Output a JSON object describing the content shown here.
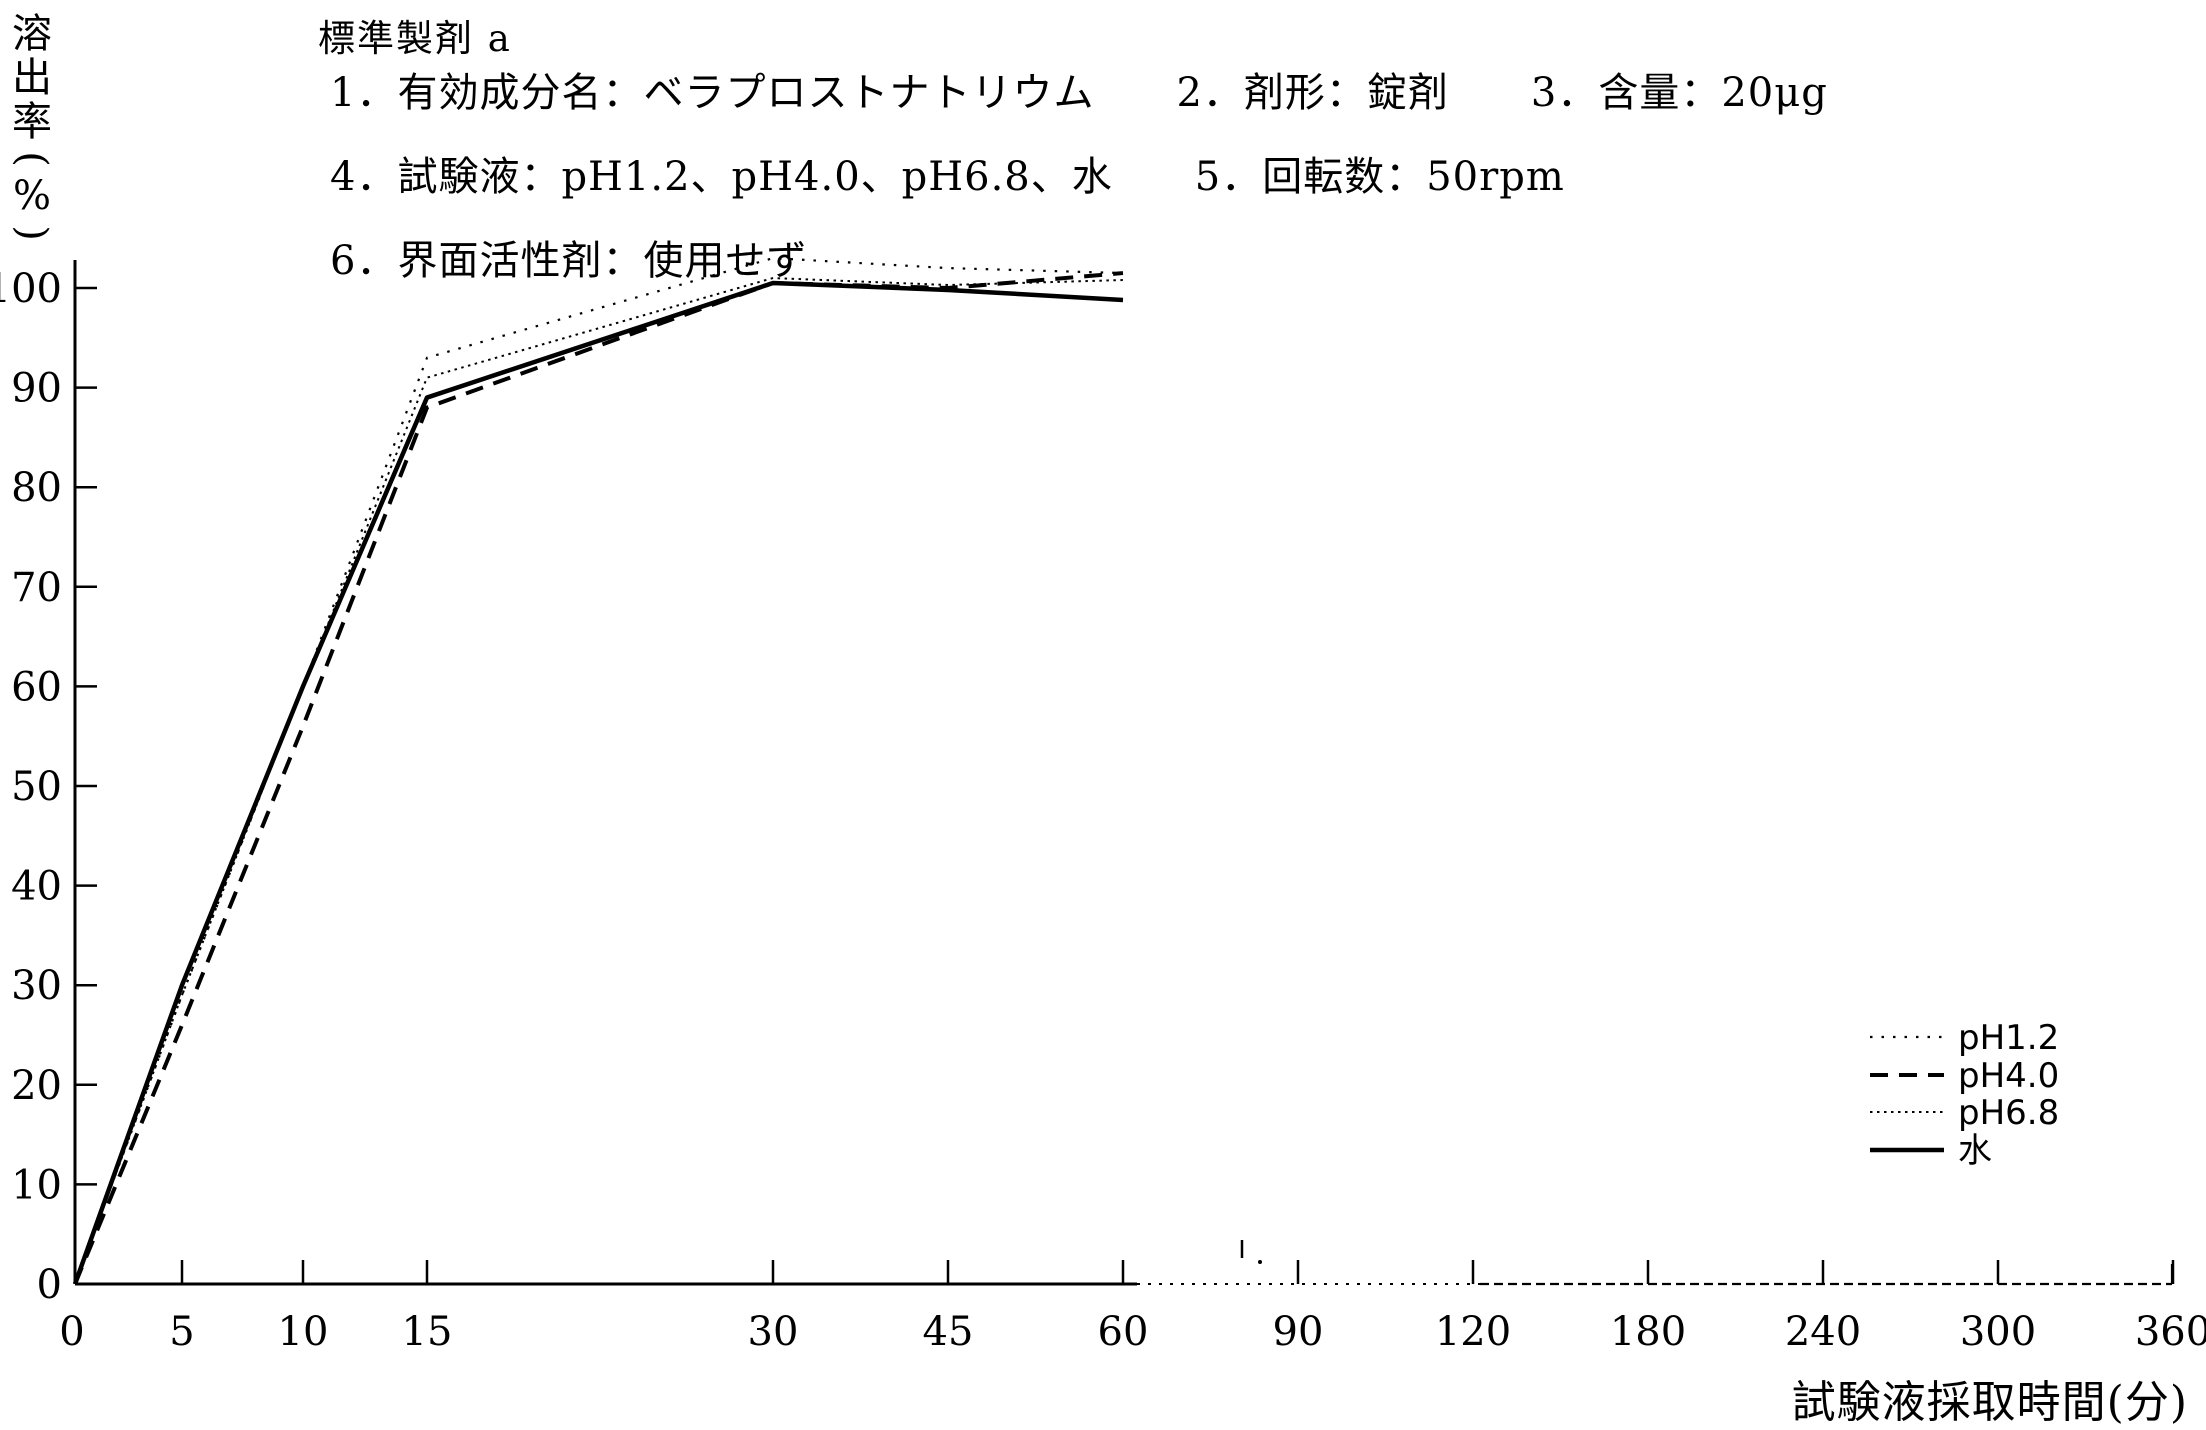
{
  "figure": {
    "title": "標準製剤 a",
    "conditions": [
      "1．有効成分名：ベラプロストナトリウム　　2．剤形：錠剤　　3．含量：20μg",
      "4．試験液：pH1.2、pH4.0、pH6.8、水　　5．回転数：50rpm",
      "6．界面活性剤：使用せず"
    ]
  },
  "chart_data": {
    "type": "line",
    "title": "標準製剤 a",
    "xlabel": "試験液採取時間(分)",
    "ylabel": "溶出率(%)",
    "ink_color": "#000000",
    "background_color": "#ffffff",
    "grid": false,
    "legend_position": "lower right",
    "x": [
      0,
      5,
      10,
      15,
      30,
      45,
      60
    ],
    "x_axis_tick_labels": [
      "0",
      "5",
      "10",
      "15",
      "30",
      "45",
      "60",
      "90",
      "120",
      "180",
      "240",
      "300",
      "360"
    ],
    "y_axis_tick_labels": [
      "0",
      "10",
      "20",
      "30",
      "40",
      "50",
      "60",
      "70",
      "80",
      "90",
      "100"
    ],
    "ylim": [
      0,
      105
    ],
    "series": [
      {
        "name": "pH1.2",
        "line_style": "sparse-dotted",
        "values": [
          0,
          29,
          60,
          93,
          103,
          102,
          101.5
        ]
      },
      {
        "name": "pH4.0",
        "line_style": "dashed",
        "values": [
          0,
          26,
          56,
          88,
          100.5,
          100,
          101.5
        ]
      },
      {
        "name": "pH6.8",
        "line_style": "fine-dotted",
        "values": [
          0,
          29,
          60,
          91,
          101,
          100.3,
          100.8
        ]
      },
      {
        "name": "水",
        "line_style": "solid",
        "values": [
          0,
          30,
          60,
          89,
          100.5,
          99.8,
          98.8
        ]
      }
    ]
  }
}
